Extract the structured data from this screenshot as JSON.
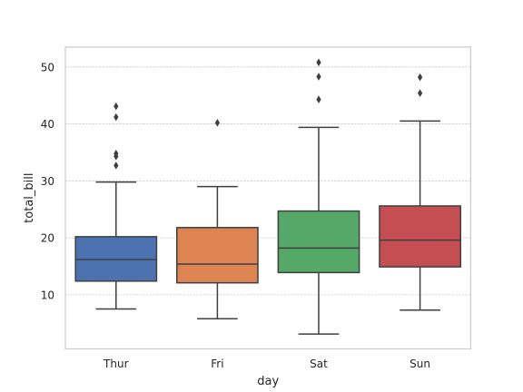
{
  "chart_data": {
    "type": "boxplot",
    "title": "",
    "xlabel": "day",
    "ylabel": "total_bill",
    "categories": [
      "Thur",
      "Fri",
      "Sat",
      "Sun"
    ],
    "ylim": [
      0.5,
      53.5
    ],
    "yticks": [
      10,
      20,
      30,
      40,
      50
    ],
    "grid": "horizontal",
    "boxes": [
      {
        "category": "Thur",
        "color": "#4c72b0",
        "whisker_low": 7.5,
        "q1": 12.4,
        "median": 16.2,
        "q3": 20.2,
        "whisker_high": 29.8,
        "outliers": [
          32.7,
          34.3,
          34.8,
          41.2,
          43.1
        ]
      },
      {
        "category": "Fri",
        "color": "#dd8452",
        "whisker_low": 5.8,
        "q1": 12.1,
        "median": 15.4,
        "q3": 21.8,
        "whisker_high": 29.0,
        "outliers": [
          40.2
        ]
      },
      {
        "category": "Sat",
        "color": "#55a868",
        "whisker_low": 3.1,
        "q1": 13.9,
        "median": 18.2,
        "q3": 24.7,
        "whisker_high": 39.4,
        "outliers": [
          44.3,
          48.3,
          50.8
        ]
      },
      {
        "category": "Sun",
        "color": "#c44e52",
        "whisker_low": 7.3,
        "q1": 14.9,
        "median": 19.6,
        "q3": 25.6,
        "whisker_high": 40.5,
        "outliers": [
          45.4,
          48.2
        ]
      }
    ]
  }
}
